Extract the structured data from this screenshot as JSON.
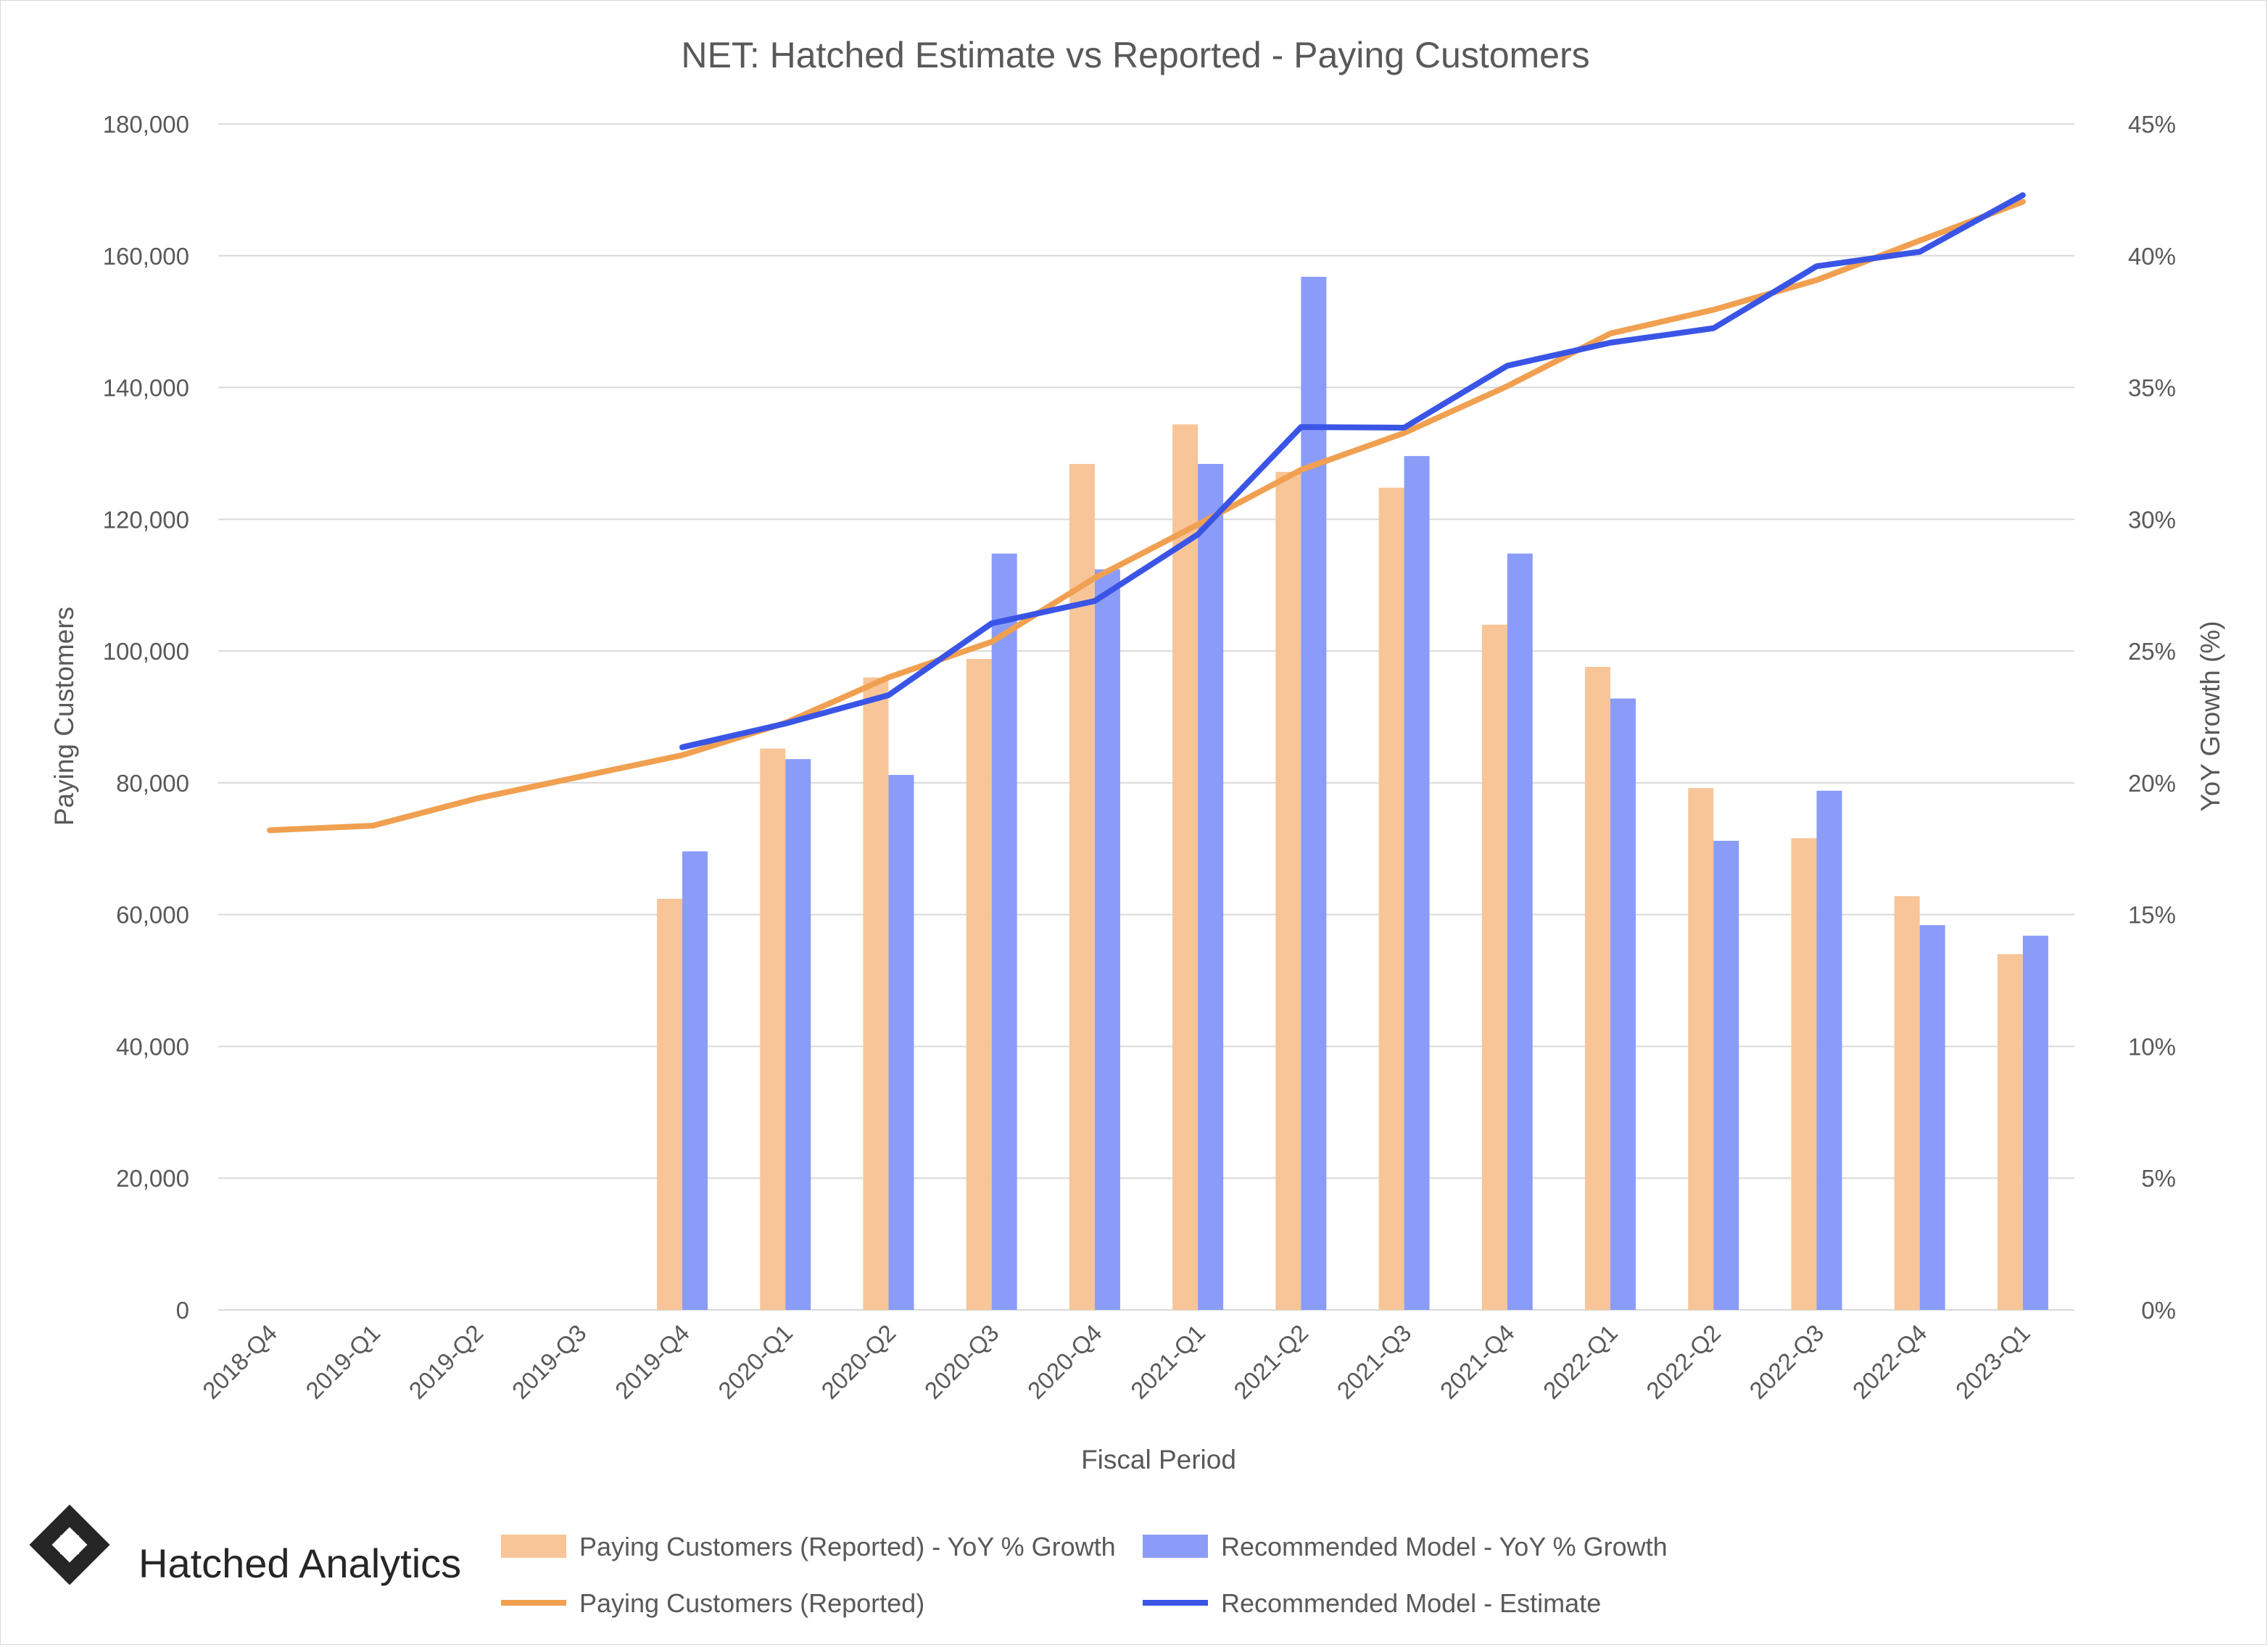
{
  "chart_data": {
    "type": "bar",
    "title": "NET: Hatched Estimate vs Reported - Paying Customers",
    "xlabel": "Fiscal Period",
    "ylabel": "Paying Customers",
    "y2label": "YoY Growth (%)",
    "categories": [
      "2018-Q4",
      "2019-Q1",
      "2019-Q2",
      "2019-Q3",
      "2019-Q4",
      "2020-Q1",
      "2020-Q2",
      "2020-Q3",
      "2020-Q4",
      "2021-Q1",
      "2021-Q2",
      "2021-Q3",
      "2021-Q4",
      "2022-Q1",
      "2022-Q2",
      "2022-Q3",
      "2022-Q4",
      "2023-Q1"
    ],
    "ylim": [
      0,
      180000
    ],
    "y2lim": [
      0,
      45
    ],
    "y_ticks": [
      "0",
      "20,000",
      "40,000",
      "60,000",
      "80,000",
      "100,000",
      "120,000",
      "140,000",
      "160,000",
      "180,000"
    ],
    "y2_ticks": [
      "0%",
      "5%",
      "10%",
      "15%",
      "20%",
      "25%",
      "30%",
      "35%",
      "40%",
      "45%"
    ],
    "grid": true,
    "legend_position": "bottom",
    "series": [
      {
        "name": "Paying Customers (Reported) - YoY % Growth",
        "kind": "bar",
        "axis": "right",
        "color": "#f8c598",
        "values": [
          null,
          null,
          null,
          null,
          15.6,
          21.3,
          24.0,
          24.7,
          32.1,
          33.6,
          31.8,
          31.2,
          26.0,
          24.4,
          19.8,
          17.9,
          15.7,
          13.5
        ]
      },
      {
        "name": "Recommended Model - YoY % Growth",
        "kind": "bar",
        "axis": "right",
        "color": "#8a9cf8",
        "values": [
          null,
          null,
          null,
          null,
          17.4,
          20.9,
          20.3,
          28.7,
          28.1,
          32.1,
          39.2,
          32.4,
          28.7,
          23.2,
          17.8,
          19.7,
          14.6,
          14.2
        ]
      },
      {
        "name": "Paying Customers (Reported)",
        "kind": "line",
        "axis": "left",
        "color": "#f0a050",
        "values": [
          72800,
          73500,
          77600,
          80900,
          84200,
          89100,
          96000,
          101400,
          111100,
          119200,
          127500,
          133100,
          140200,
          148200,
          151800,
          156300,
          162300,
          168200
        ]
      },
      {
        "name": "Recommended Model - Estimate",
        "kind": "line",
        "axis": "left",
        "color": "#3a55e6",
        "values": [
          null,
          null,
          null,
          null,
          85400,
          89000,
          93300,
          104200,
          107600,
          117700,
          134000,
          133900,
          143300,
          146800,
          149000,
          158400,
          160600,
          169200
        ]
      }
    ]
  },
  "branding": {
    "name": "Hatched Analytics",
    "logo_icon": "hatched-diamond-logo-icon"
  }
}
